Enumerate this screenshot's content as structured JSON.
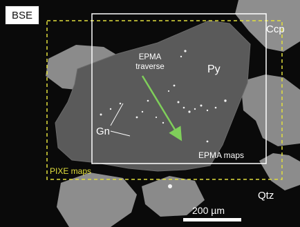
{
  "micrograph": {
    "mode_label": "BSE",
    "minerals": {
      "chalcopyrite": "Ccp",
      "pyrite": "Py",
      "galena": "Gn",
      "quartz": "Qtz"
    },
    "epma_traverse_label": [
      "EPMA",
      "traverse"
    ],
    "epma_maps_label": "EPMA maps",
    "pixe_maps_label": "PIXE maps",
    "scale_bar_label": "200 µm"
  },
  "colors": {
    "background": "#0a0a0a",
    "pyrite_grain": "#5a5a5a",
    "neighbor_grains": "#8e8e8e",
    "galena_inclusions": "#f2f2f2",
    "epma_box": "#ffffff",
    "pixe_box": "#e2df3c",
    "traverse_arrow": "#7fcf5a"
  }
}
